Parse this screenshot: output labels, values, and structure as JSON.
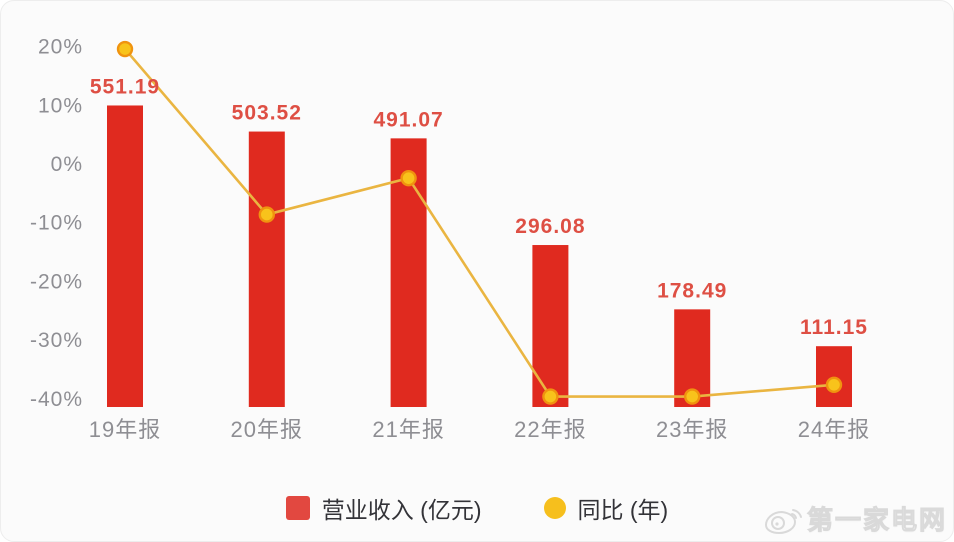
{
  "chart_data": {
    "type": "bar",
    "categories": [
      "19年报",
      "20年报",
      "21年报",
      "22年报",
      "23年报",
      "24年报"
    ],
    "series": [
      {
        "name": "营业收入 (亿元)",
        "type": "bar",
        "values": [
          551.19,
          503.52,
          491.07,
          296.08,
          178.49,
          111.15
        ],
        "value_labels": [
          "551.19",
          "503.52",
          "491.07",
          "296.08",
          "178.49",
          "111.15"
        ]
      },
      {
        "name": "同比 (年)",
        "type": "line",
        "unit": "%",
        "values": [
          19.5,
          -8.7,
          -2.5,
          -39.7,
          -39.7,
          -37.7
        ]
      }
    ],
    "y_axis": {
      "tick_labels": [
        "20%",
        "10%",
        "0%",
        "-10%",
        "-20%",
        "-30%",
        "-40%"
      ],
      "tick_values": [
        20,
        10,
        0,
        -10,
        -20,
        -30,
        -40
      ],
      "min": -40,
      "max": 20
    },
    "grid": false,
    "legend_position": "bottom",
    "title": "",
    "xlabel": "",
    "ylabel": ""
  },
  "colors": {
    "background": "#fbfbfb",
    "bar": "#e02a1f",
    "bar_value_label": "#de4f44",
    "line": "#eab541",
    "point_fill": "#f8c31b",
    "point_stroke": "#f0930f",
    "axis_text": "#8e8e93",
    "legend_text": "#333338",
    "legend_bar_swatch": "#e24840",
    "legend_point_swatch": "#f6bf1d",
    "watermark": "#d9d9d9"
  },
  "legend": {
    "revenue_label": "营业收入 (亿元)",
    "yoy_label": "同比 (年)"
  },
  "watermark": {
    "text": "第一家电网",
    "icon": "weibo-logo-icon"
  }
}
